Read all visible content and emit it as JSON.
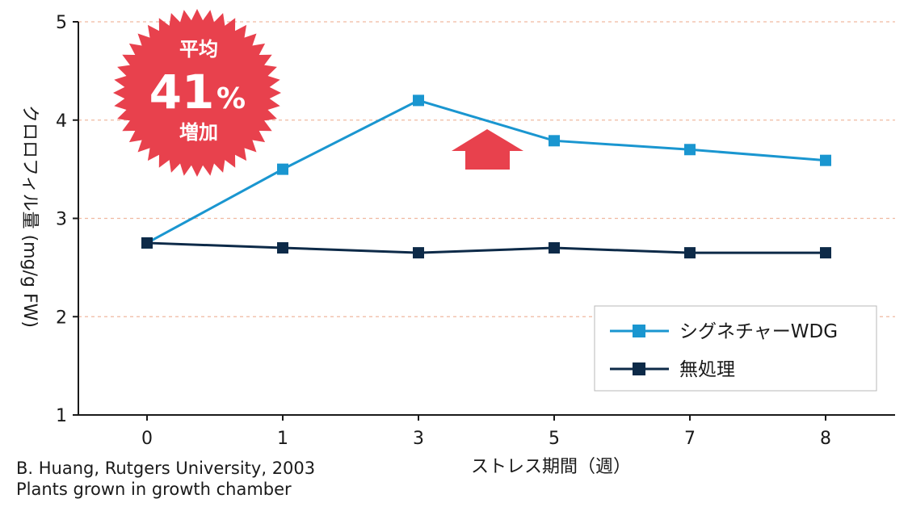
{
  "chart_data": {
    "type": "line",
    "title": "",
    "xlabel": "ストレス期間（週）",
    "ylabel": "クロロフィル量 (mg/g FW)",
    "x_ticks": [
      "0",
      "1",
      "3",
      "5",
      "7",
      "8"
    ],
    "y_ticks": [
      "1",
      "2",
      "3",
      "4",
      "5"
    ],
    "ylim": [
      1,
      5
    ],
    "grid": "horizontal dashed",
    "legend_position": "bottom-right",
    "series": [
      {
        "name": "シグネチャーWDG",
        "color": "#1a96d0",
        "values": [
          2.75,
          3.5,
          4.2,
          3.79,
          3.7,
          3.59
        ]
      },
      {
        "name": "無処理",
        "color": "#0d2a48",
        "values": [
          2.75,
          2.7,
          2.65,
          2.7,
          2.65,
          2.65
        ]
      }
    ]
  },
  "badge": {
    "line1": "平均",
    "value": "41",
    "unit": "%",
    "line3": "増加",
    "color": "#e8414d"
  },
  "arrow_color": "#e8414d",
  "credit": {
    "line1": "B. Huang, Rutgers University, 2003",
    "line2": "Plants grown in growth chamber"
  }
}
